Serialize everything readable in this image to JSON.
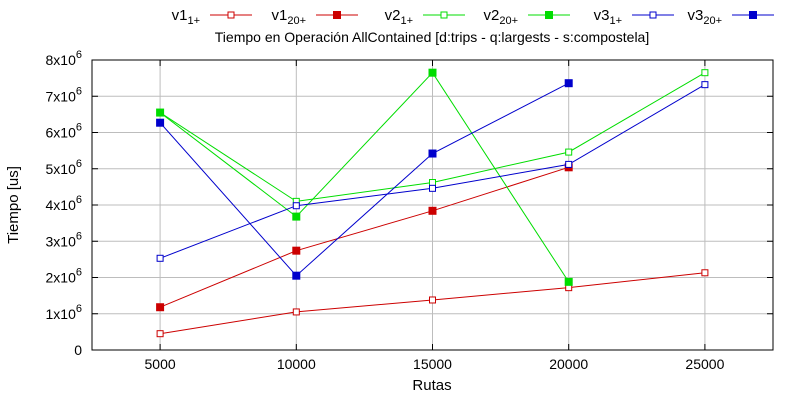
{
  "chart_data": {
    "type": "line",
    "title": "Tiempo en Operación AllContained [d:trips - q:largests - s:compostela]",
    "xlabel": "Rutas",
    "ylabel": "Tiempo [us]",
    "xlim": [
      2500,
      27500
    ],
    "ylim": [
      0,
      8000000
    ],
    "x_ticks": [
      {
        "value": 5000,
        "label": "5000"
      },
      {
        "value": 10000,
        "label": "10000"
      },
      {
        "value": 15000,
        "label": "15000"
      },
      {
        "value": 20000,
        "label": "20000"
      },
      {
        "value": 25000,
        "label": "25000"
      }
    ],
    "y_ticks": [
      {
        "value": 0,
        "base": "0",
        "exp": ""
      },
      {
        "value": 1000000,
        "base": "1x10",
        "exp": "6"
      },
      {
        "value": 2000000,
        "base": "2x10",
        "exp": "6"
      },
      {
        "value": 3000000,
        "base": "3x10",
        "exp": "6"
      },
      {
        "value": 4000000,
        "base": "4x10",
        "exp": "6"
      },
      {
        "value": 5000000,
        "base": "5x10",
        "exp": "6"
      },
      {
        "value": 6000000,
        "base": "6x10",
        "exp": "6"
      },
      {
        "value": 7000000,
        "base": "7x10",
        "exp": "6"
      },
      {
        "value": 8000000,
        "base": "8x10",
        "exp": "6"
      }
    ],
    "grid": true,
    "legend_position": "top",
    "series": [
      {
        "name": "v1",
        "sub": "1+",
        "color": "#cc0000",
        "marker": "open-square",
        "x": [
          5000,
          10000,
          15000,
          20000,
          25000
        ],
        "y": [
          450000,
          1050000,
          1380000,
          1720000,
          2130000
        ]
      },
      {
        "name": "v1",
        "sub": "20+",
        "color": "#cc0000",
        "marker": "filled-square",
        "x": [
          5000,
          10000,
          15000,
          20000
        ],
        "y": [
          1180000,
          2740000,
          3840000,
          5040000
        ]
      },
      {
        "name": "v2",
        "sub": "1+",
        "color": "#00dd00",
        "marker": "open-square",
        "x": [
          5000,
          10000,
          15000,
          20000,
          25000
        ],
        "y": [
          6550000,
          4100000,
          4620000,
          5460000,
          7650000
        ]
      },
      {
        "name": "v2",
        "sub": "20+",
        "color": "#00dd00",
        "marker": "filled-square",
        "x": [
          5000,
          10000,
          15000,
          20000
        ],
        "y": [
          6550000,
          3680000,
          7650000,
          1880000
        ]
      },
      {
        "name": "v3",
        "sub": "1+",
        "color": "#0000cc",
        "marker": "open-square",
        "x": [
          5000,
          10000,
          15000,
          20000,
          25000
        ],
        "y": [
          2530000,
          3980000,
          4460000,
          5120000,
          7320000
        ]
      },
      {
        "name": "v3",
        "sub": "20+",
        "color": "#0000cc",
        "marker": "filled-square",
        "x": [
          5000,
          10000,
          15000,
          20000
        ],
        "y": [
          6270000,
          2050000,
          5420000,
          7360000
        ]
      }
    ]
  }
}
